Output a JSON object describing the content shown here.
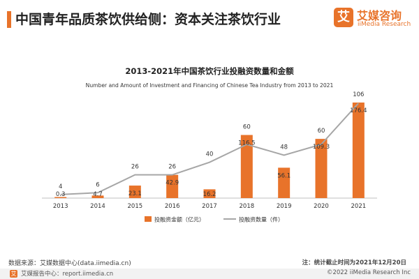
{
  "header": {
    "title": "中国青年品质茶饮供给侧：资本关注茶饮行业",
    "accent_color": "#e8732a"
  },
  "brand": {
    "logo_mark": "艾",
    "name_cn": "艾媒咨询",
    "name_en": "iiMedia Research",
    "color": "#e8732a"
  },
  "chart_data": {
    "type": "bar",
    "title": "2013-2021年中国茶饮行业投融资数量和金额",
    "subtitle": "Number and Amount of Investment and Financing of Chinese Tea Industry from 2013 to 2021",
    "categories": [
      "2013",
      "2014",
      "2015",
      "2016",
      "2017",
      "2018",
      "2019",
      "2020",
      "2021"
    ],
    "series": [
      {
        "name": "投融资金额（亿元）",
        "type": "bar",
        "color": "#e8732a",
        "values": [
          0.3,
          4.7,
          23.1,
          42.9,
          16.2,
          116.5,
          56.1,
          109.3,
          176.4
        ]
      },
      {
        "name": "投融资数量（件）",
        "type": "line",
        "color": "#a6a6a6",
        "values": [
          4,
          6,
          26,
          26,
          40,
          60,
          48,
          60,
          106
        ]
      }
    ],
    "legend_position": "bottom",
    "grid": false
  },
  "footer": {
    "source": "数据来源：艾媒数据中心(data.iimedia.cn)",
    "note": "注：统计截止时间为2021年12月20日",
    "bottom_left": "艾媒报告中心：report.iimedia.cn",
    "bottom_right": "©2022  iiMedia Research  Inc"
  }
}
